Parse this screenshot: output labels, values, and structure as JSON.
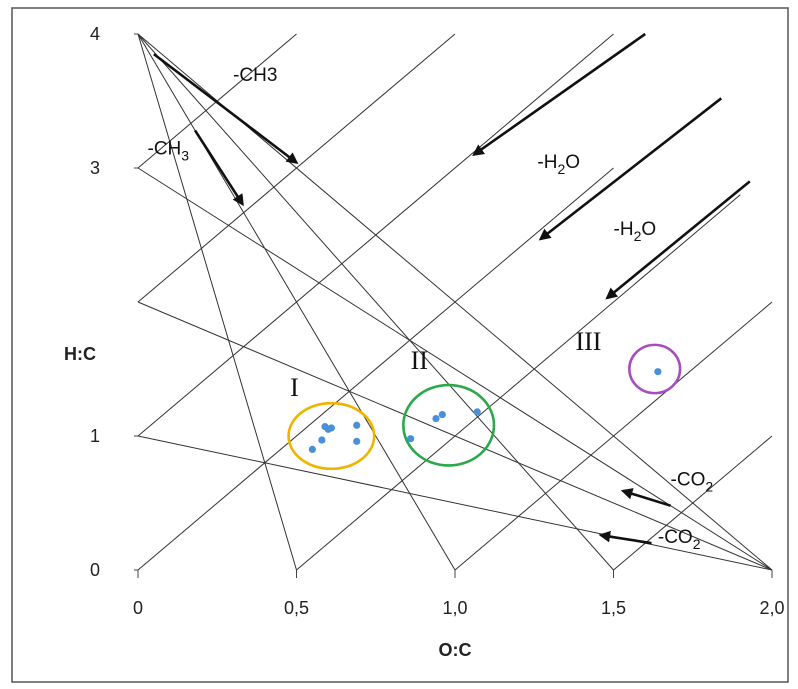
{
  "chart_data": {
    "type": "scatter",
    "title": "",
    "xlabel": "O:C",
    "ylabel": "H:C",
    "xlim": [
      0,
      2
    ],
    "ylim": [
      0,
      4
    ],
    "x_tick_labels": [
      "0",
      "0,5",
      "1,0",
      "1,5",
      "2,0"
    ],
    "x_tick_values": [
      0,
      0.5,
      1.0,
      1.5,
      2.0
    ],
    "y_tick_labels": [
      "0",
      "1",
      "3",
      "4"
    ],
    "y_tick_values": [
      0,
      1,
      3,
      4
    ],
    "points": [
      {
        "x": 0.55,
        "y": 0.9
      },
      {
        "x": 0.58,
        "y": 0.97
      },
      {
        "x": 0.59,
        "y": 1.07
      },
      {
        "x": 0.6,
        "y": 1.05
      },
      {
        "x": 0.61,
        "y": 1.06
      },
      {
        "x": 0.69,
        "y": 1.08
      },
      {
        "x": 0.69,
        "y": 0.96
      },
      {
        "x": 0.86,
        "y": 0.98
      },
      {
        "x": 0.94,
        "y": 1.13
      },
      {
        "x": 0.96,
        "y": 1.16
      },
      {
        "x": 1.07,
        "y": 1.18
      },
      {
        "x": 1.64,
        "y": 1.48
      }
    ],
    "reference_lines": [
      {
        "from": [
          0,
          4
        ],
        "to": [
          0.5,
          0
        ]
      },
      {
        "from": [
          0,
          4
        ],
        "to": [
          1.0,
          0
        ]
      },
      {
        "from": [
          0,
          4
        ],
        "to": [
          1.5,
          0
        ]
      },
      {
        "from": [
          0,
          4
        ],
        "to": [
          2.0,
          0
        ]
      },
      {
        "from": [
          0,
          3
        ],
        "to": [
          2.0,
          0
        ]
      },
      {
        "from": [
          0,
          2
        ],
        "to": [
          2.0,
          0
        ]
      },
      {
        "from": [
          0,
          1
        ],
        "to": [
          2.0,
          0
        ]
      },
      {
        "from": [
          0,
          0
        ],
        "to": [
          1.5,
          3
        ]
      },
      {
        "from": [
          0,
          1
        ],
        "to": [
          1.5,
          4
        ]
      },
      {
        "from": [
          0,
          2
        ],
        "to": [
          1.0,
          4
        ]
      },
      {
        "from": [
          0,
          3
        ],
        "to": [
          0.5,
          4
        ]
      },
      {
        "from": [
          0.5,
          0
        ],
        "to": [
          1.9,
          2.8
        ]
      },
      {
        "from": [
          1.0,
          0
        ],
        "to": [
          2.0,
          2.0
        ]
      },
      {
        "from": [
          1.5,
          0
        ],
        "to": [
          2.0,
          1.0
        ]
      }
    ],
    "arrows": [
      {
        "from": [
          0.05,
          3.85
        ],
        "to": [
          0.5,
          3.04
        ]
      },
      {
        "from": [
          0.18,
          3.28
        ],
        "to": [
          0.33,
          2.73
        ]
      },
      {
        "from": [
          1.6,
          4.0
        ],
        "to": [
          1.06,
          3.1
        ]
      },
      {
        "from": [
          1.84,
          3.52
        ],
        "to": [
          1.27,
          2.47
        ]
      },
      {
        "from": [
          1.93,
          2.9
        ],
        "to": [
          1.48,
          2.03
        ]
      },
      {
        "from": [
          1.68,
          0.48
        ],
        "to": [
          1.53,
          0.59
        ]
      },
      {
        "from": [
          1.62,
          0.2
        ],
        "to": [
          1.46,
          0.26
        ]
      }
    ],
    "annotations": [
      {
        "text": "-CH3",
        "x": 0.3,
        "y": 3.65
      },
      {
        "text": "-CH",
        "sub": "3",
        "x": 0.03,
        "y": 3.1
      },
      {
        "text": "-H",
        "sub": "2",
        "tail": "O",
        "x": 1.26,
        "y": 3.0
      },
      {
        "text": "-H",
        "sub": "2",
        "tail": "O",
        "x": 1.5,
        "y": 2.5
      },
      {
        "text": "-CO",
        "sub": "2",
        "x": 1.68,
        "y": 0.63
      },
      {
        "text": "-CO",
        "sub": "2",
        "x": 1.64,
        "y": 0.2
      }
    ],
    "clusters": [
      {
        "label": "I",
        "label_x": 0.48,
        "label_y": 1.3,
        "cx": 0.61,
        "cy": 1.0,
        "rx": 0.135,
        "ry": 0.245,
        "color": "#f0b400"
      },
      {
        "label": "II",
        "label_x": 0.86,
        "label_y": 1.5,
        "cx": 0.98,
        "cy": 1.08,
        "rx": 0.143,
        "ry": 0.3,
        "color": "#2aa84a"
      },
      {
        "label": "III",
        "label_x": 1.38,
        "label_y": 1.64,
        "cx": 1.63,
        "cy": 1.5,
        "rx": 0.08,
        "ry": 0.18,
        "color": "#a64cbf"
      }
    ],
    "grid": false,
    "colors": {
      "points": "#4a90d9",
      "lines": "#333333",
      "arrows": "#111111",
      "frame": "#555555"
    }
  }
}
